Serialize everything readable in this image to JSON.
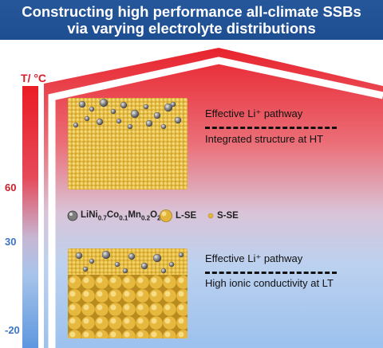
{
  "title": {
    "line1": "Constructing high performance all-climate SSBs",
    "line2": "via varying electrolyte distributions"
  },
  "temperature_axis": {
    "label": "T/ °C",
    "ticks": [
      "60",
      "30",
      "-20"
    ]
  },
  "top_panel": {
    "label1": "Effective Li⁺ pathway",
    "label2": "Integrated structure at HT"
  },
  "bottom_panel": {
    "label1": "Effective Li⁺ pathway",
    "label2": "High ionic conductivity at LT"
  },
  "legend": {
    "cathode_prefix": "LiNi",
    "cathode_ni_sub": "0.7",
    "cathode_co": "Co",
    "cathode_co_sub": "0.1",
    "cathode_mn": "Mn",
    "cathode_mn_sub": "0.2",
    "cathode_o": "O",
    "cathode_o_sub": "2",
    "large_electrolyte": "L-SE",
    "small_electrolyte": "S-SE"
  },
  "colors": {
    "banner": "#23549a",
    "hot": "#ea1c24",
    "cold": "#5e97df",
    "gold": "#e3b53a",
    "cathode": "#7d7d7d"
  }
}
